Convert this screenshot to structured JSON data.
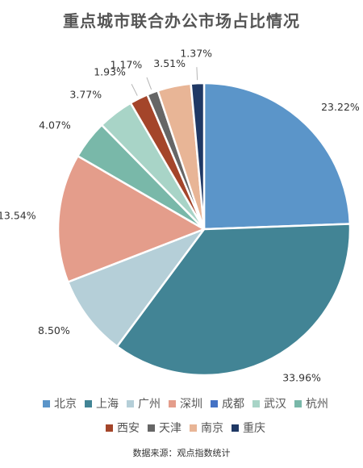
{
  "chart_data": {
    "type": "pie",
    "title": "重点城市联合办公市场占比情况",
    "source": "数据来源：观点指数统计",
    "legend_position": "bottom",
    "slices": [
      {
        "name": "北京",
        "value": 23.22,
        "label": "23.22%",
        "color": "#5b95c9"
      },
      {
        "name": "上海",
        "value": 33.96,
        "label": "33.96%",
        "color": "#428495"
      },
      {
        "name": "广州",
        "value": 8.5,
        "label": "8.50%",
        "color": "#b5cfd8"
      },
      {
        "name": "深圳",
        "value": 13.54,
        "label": "13.54%",
        "color": "#e49d8b"
      },
      {
        "name": "成都",
        "value": 0,
        "label": "",
        "color": "#4472c4"
      },
      {
        "name": "武汉",
        "value": 3.77,
        "label": "3.77%",
        "color": "#a8d4c7"
      },
      {
        "name": "杭州",
        "value": 4.07,
        "label": "4.07%",
        "color": "#79b8a9"
      },
      {
        "name": "西安",
        "value": 1.93,
        "label": "1.93%",
        "color": "#a4452a"
      },
      {
        "name": "天津",
        "value": 1.17,
        "label": "1.17%",
        "color": "#666666"
      },
      {
        "name": "南京",
        "value": 3.51,
        "label": "3.51%",
        "color": "#e8b596"
      },
      {
        "name": "重庆",
        "value": 1.37,
        "label": "1.37%",
        "color": "#1f3864"
      }
    ],
    "draw_order": [
      "北京",
      "上海",
      "广州",
      "深圳",
      "杭州",
      "武汉",
      "成都",
      "西安",
      "天津",
      "南京",
      "重庆"
    ]
  }
}
